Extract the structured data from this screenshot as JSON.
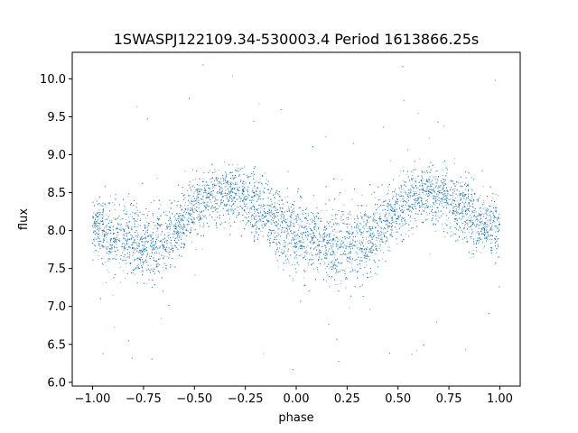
{
  "chart_data": {
    "type": "scatter",
    "title": "1SWASPJ122109.34-530003.4 Period 1613866.25s",
    "xlabel": "phase",
    "ylabel": "flux",
    "xlim": [
      -1.1,
      1.1
    ],
    "ylim": [
      5.95,
      10.35
    ],
    "x_ticks": [
      -1.0,
      -0.75,
      -0.5,
      -0.25,
      0.0,
      0.25,
      0.5,
      0.75,
      1.0
    ],
    "x_tick_labels": [
      "−1.00",
      "−0.75",
      "−0.50",
      "−0.25",
      "0.00",
      "0.25",
      "0.50",
      "0.75",
      "1.00"
    ],
    "y_ticks": [
      6.0,
      6.5,
      7.0,
      7.5,
      8.0,
      8.5,
      9.0,
      9.5,
      10.0
    ],
    "y_tick_labels": [
      "6.0",
      "6.5",
      "7.0",
      "7.5",
      "8.0",
      "8.5",
      "9.0",
      "9.5",
      "10.0"
    ],
    "grid": false,
    "legend": "none",
    "marker_color": "#1f77b4",
    "series": [
      {
        "x": [
          -1.0,
          -0.95,
          -0.9,
          -0.85,
          -0.8,
          -0.75,
          -0.7,
          -0.65,
          -0.6,
          -0.55,
          -0.5,
          -0.45,
          -0.4,
          -0.35,
          -0.3,
          -0.25,
          -0.2,
          -0.15,
          -0.1,
          -0.05,
          0.0,
          0.05,
          0.1,
          0.15,
          0.2,
          0.25,
          0.3,
          0.35,
          0.4,
          0.45,
          0.5,
          0.55,
          0.6,
          0.65,
          0.7,
          0.75,
          0.8,
          0.85,
          0.9,
          0.95,
          1.0
        ],
        "y": [
          8.05,
          8.0,
          7.95,
          7.9,
          7.85,
          7.8,
          7.8,
          7.85,
          8.0,
          8.15,
          8.3,
          8.4,
          8.45,
          8.5,
          8.45,
          8.4,
          8.3,
          8.2,
          8.1,
          8.0,
          7.95,
          7.9,
          7.85,
          7.8,
          7.8,
          7.8,
          7.85,
          7.9,
          8.0,
          8.15,
          8.3,
          8.4,
          8.45,
          8.5,
          8.45,
          8.4,
          8.3,
          8.2,
          8.1,
          8.05,
          8.05
        ],
        "scatter_spread": [
          0.35,
          0.35,
          0.4,
          0.45,
          0.45,
          0.45,
          0.45,
          0.45,
          0.4,
          0.35,
          0.35,
          0.35,
          0.35,
          0.35,
          0.35,
          0.35,
          0.4,
          0.4,
          0.4,
          0.45,
          0.45,
          0.45,
          0.45,
          0.45,
          0.45,
          0.45,
          0.45,
          0.45,
          0.4,
          0.35,
          0.35,
          0.35,
          0.35,
          0.35,
          0.35,
          0.35,
          0.4,
          0.4,
          0.4,
          0.35,
          0.35
        ]
      }
    ]
  }
}
